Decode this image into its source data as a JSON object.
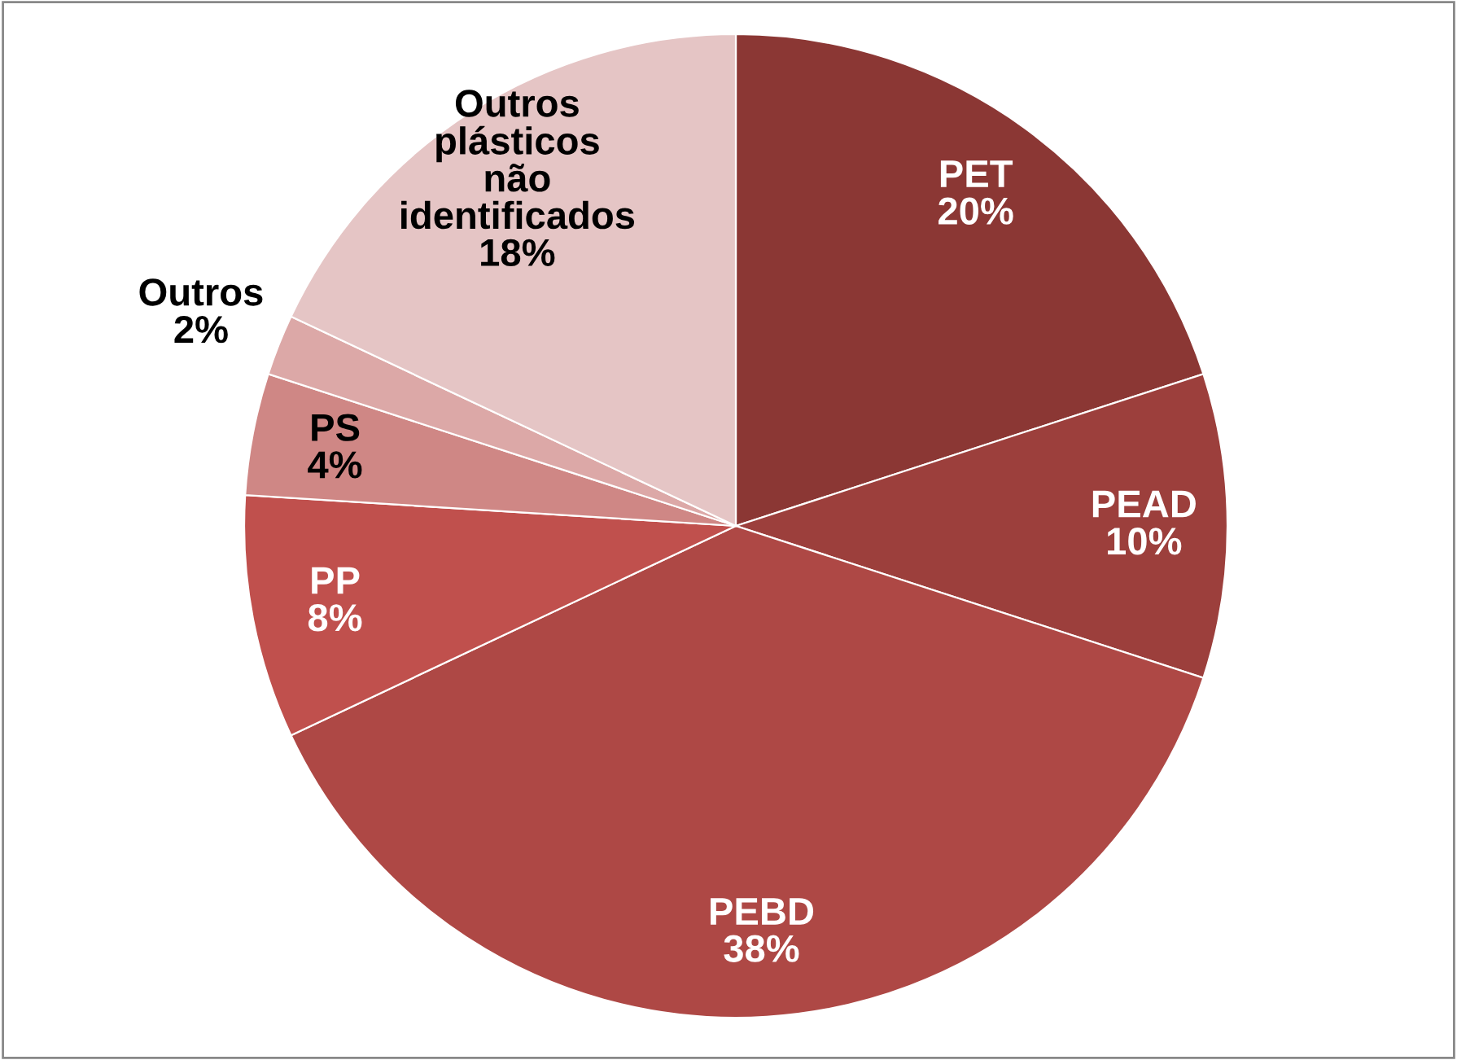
{
  "chart_data": {
    "type": "pie",
    "categories": [
      "PET",
      "PEAD",
      "PEBD",
      "PP",
      "PS",
      "Outros",
      "Outros\nplásticos\nnão\nidentificados"
    ],
    "values": [
      20,
      10,
      38,
      8,
      4,
      2,
      18
    ],
    "value_labels": [
      "20%",
      "10%",
      "38%",
      "8%",
      "4%",
      "2%",
      "18%"
    ],
    "colors": [
      "#8b3734",
      "#9c3f3c",
      "#ae4845",
      "#c0504d",
      "#cf8785",
      "#dca8a7",
      "#e5c5c5"
    ],
    "legend": false
  }
}
